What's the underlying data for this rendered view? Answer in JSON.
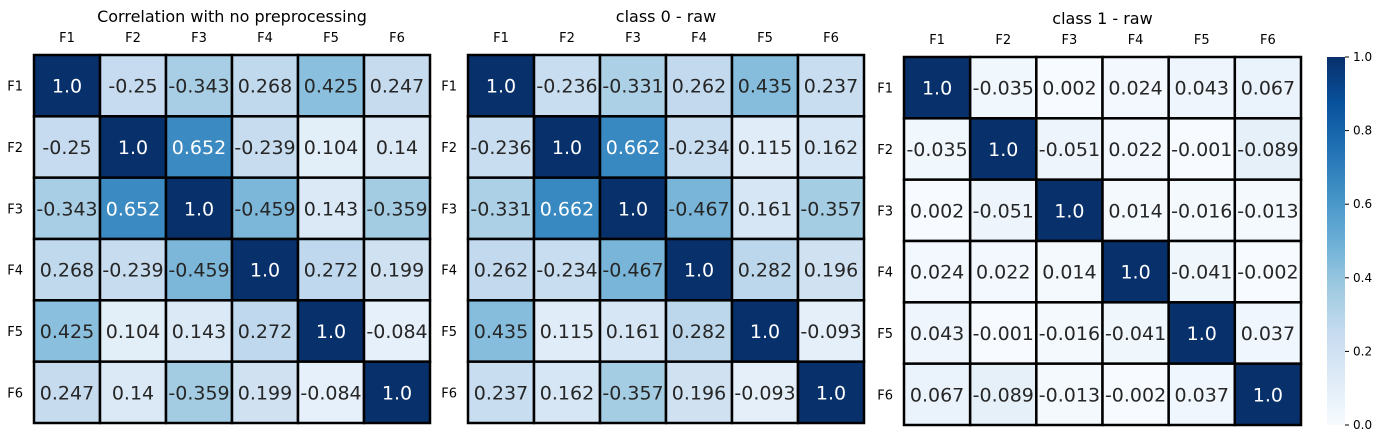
{
  "chart_data": [
    {
      "type": "heatmap",
      "title": "Correlation with no preprocessing",
      "x_labels": [
        "F1",
        "F2",
        "F3",
        "F4",
        "F5",
        "F6"
      ],
      "y_labels": [
        "F1",
        "F2",
        "F3",
        "F4",
        "F5",
        "F6"
      ],
      "values": [
        [
          1.0,
          -0.25,
          -0.343,
          0.268,
          0.425,
          0.247
        ],
        [
          -0.25,
          1.0,
          0.652,
          -0.239,
          0.104,
          0.14
        ],
        [
          -0.343,
          0.652,
          1.0,
          -0.459,
          0.143,
          -0.359
        ],
        [
          0.268,
          -0.239,
          -0.459,
          1.0,
          0.272,
          0.199
        ],
        [
          0.425,
          0.104,
          0.143,
          0.272,
          1.0,
          -0.084
        ],
        [
          0.247,
          0.14,
          -0.359,
          0.199,
          -0.084,
          1.0
        ]
      ],
      "color_scale": "absolute value, Blues"
    },
    {
      "type": "heatmap",
      "title": "class 0 - raw",
      "x_labels": [
        "F1",
        "F2",
        "F3",
        "F4",
        "F5",
        "F6"
      ],
      "y_labels": [
        "F1",
        "F2",
        "F3",
        "F4",
        "F5",
        "F6"
      ],
      "values": [
        [
          1.0,
          -0.236,
          -0.331,
          0.262,
          0.435,
          0.237
        ],
        [
          -0.236,
          1.0,
          0.662,
          -0.234,
          0.115,
          0.162
        ],
        [
          -0.331,
          0.662,
          1.0,
          -0.467,
          0.161,
          -0.357
        ],
        [
          0.262,
          -0.234,
          -0.467,
          1.0,
          0.282,
          0.196
        ],
        [
          0.435,
          0.115,
          0.161,
          0.282,
          1.0,
          -0.093
        ],
        [
          0.237,
          0.162,
          -0.357,
          0.196,
          -0.093,
          1.0
        ]
      ],
      "color_scale": "absolute value, Blues"
    },
    {
      "type": "heatmap",
      "title": "class 1 - raw",
      "x_labels": [
        "F1",
        "F2",
        "F3",
        "F4",
        "F5",
        "F6"
      ],
      "y_labels": [
        "F1",
        "F2",
        "F3",
        "F4",
        "F5",
        "F6"
      ],
      "values": [
        [
          1.0,
          -0.035,
          0.002,
          0.024,
          0.043,
          0.067
        ],
        [
          -0.035,
          1.0,
          -0.051,
          0.022,
          -0.001,
          -0.089
        ],
        [
          0.002,
          -0.051,
          1.0,
          0.014,
          -0.016,
          -0.013
        ],
        [
          0.024,
          0.022,
          0.014,
          1.0,
          -0.041,
          -0.002
        ],
        [
          0.043,
          -0.001,
          -0.016,
          -0.041,
          1.0,
          0.037
        ],
        [
          0.067,
          -0.089,
          -0.013,
          -0.002,
          0.037,
          1.0
        ]
      ],
      "color_scale": "absolute value, Blues"
    }
  ],
  "colorbar": {
    "range": [
      0.0,
      1.0
    ],
    "ticks": [
      "0.0",
      "0.2",
      "0.4",
      "0.6",
      "0.8",
      "1.0"
    ],
    "colormap": "Blues",
    "colors": [
      "#f7fbff",
      "#deebf7",
      "#c6dbef",
      "#9ecae1",
      "#6baed6",
      "#4292c6",
      "#2171b5",
      "#08519c",
      "#08306b"
    ]
  }
}
